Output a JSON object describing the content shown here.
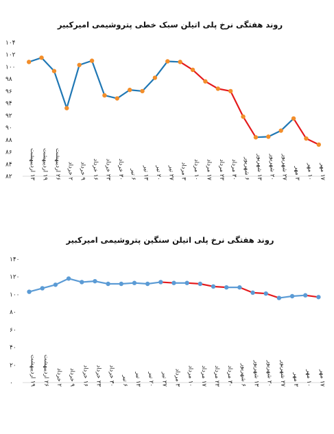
{
  "chart_data": [
    {
      "type": "line",
      "title": "روند هفتگی نرخ پلی اتیلن سبک خطی پتروشیمی امیرکبیر",
      "ytick_labels": [
        "۸۲",
        "۸۴",
        "۸۶",
        "۸۸",
        "۹۰",
        "۹۲",
        "۹۴",
        "۹۶",
        "۹۸",
        "۱۰۰",
        "۱۰۲",
        "۱۰۴"
      ],
      "ylim": [
        82,
        104
      ],
      "categories": [
        "۱۳ اردیبهشت",
        "۱۹ اردیبهشت",
        "۲۶ اردیبهشت",
        "۲ خرداد",
        "۹ خرداد",
        "۱۶ خرداد",
        "۲۳ خرداد",
        "۳۰ خرداد",
        "۶ تیر",
        "۱۳ تیر",
        "۲۰ تیر",
        "۲۷ تیر",
        "۳ مرداد",
        "۱۰ مرداد",
        "۱۷ مرداد",
        "۲۳ مرداد",
        "۳۰ مرداد",
        "۶ شهریور",
        "۱۳ شهریور",
        "۲۰ شهریور",
        "۲۷ شهریور",
        "۳ مهر",
        "۱۰ مهر",
        "۱۷ مهر"
      ],
      "values": [
        100.8,
        101.5,
        99.3,
        93.2,
        100.3,
        101.0,
        95.3,
        94.8,
        96.2,
        96.0,
        98.2,
        100.9,
        100.8,
        99.5,
        97.6,
        96.4,
        96.0,
        91.8,
        88.4,
        88.5,
        89.5,
        91.5,
        88.2,
        87.2
      ],
      "line_colors": {
        "up": "#1f77b4",
        "down": "#e41a1c"
      },
      "marker_color": "#f28e2b",
      "grid": false
    },
    {
      "type": "line",
      "title": "روند هفتگی نرخ پلی اتیلن سنگین پتروشیمی امیرکبیر",
      "ytick_labels": [
        "۰",
        "۲۰",
        "۴۰",
        "۶۰",
        "۸۰",
        "۱۰۰",
        "۱۲۰",
        "۱۴۰"
      ],
      "ylim": [
        0,
        140
      ],
      "categories": [
        "۱۹ اردیبهشت",
        "۲۶ اردیبهشت",
        "۲ خرداد",
        "۹ خرداد",
        "۱۶ خرداد",
        "۲۳ خرداد",
        "۳۰ خرداد",
        "۶ تیر",
        "۱۳ تیر",
        "۲۰ تیر",
        "۲۷ تیر",
        "۳ مرداد",
        "۱۰ مرداد",
        "۱۷ مرداد",
        "۲۳ مرداد",
        "۳۰ مرداد",
        "۶ شهریور",
        "۱۳ شهریور",
        "۲۰ شهریور",
        "۲۷ شهریور",
        "۳ مهر",
        "۱۰ مهر",
        "۱۷ مهر"
      ],
      "values": [
        103,
        107,
        111,
        118,
        114,
        115,
        112,
        112,
        113,
        112,
        114,
        113,
        113,
        112,
        109,
        108,
        108,
        102,
        101,
        96,
        98,
        99,
        97
      ],
      "line_colors": {
        "up": "#5b9bd5",
        "down": "#e41a1c"
      },
      "marker_color": "#5b9bd5",
      "grid": false
    }
  ]
}
